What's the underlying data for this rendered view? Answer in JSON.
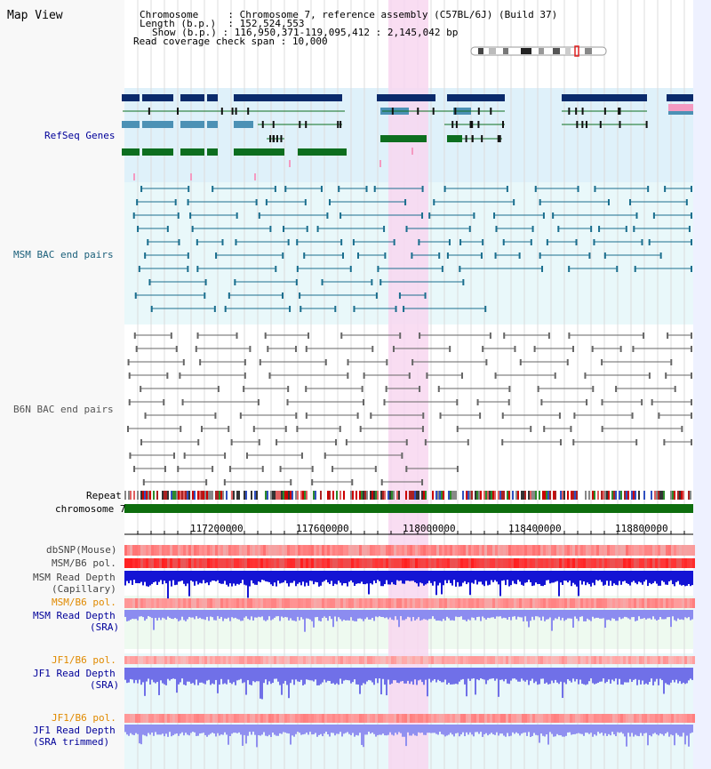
{
  "title": "Map View",
  "info": {
    "chromosome_label": "Chromosome",
    "chromosome_value": "Chromosome 7, reference assembly (C57BL/6J) (Build 37)",
    "length_label": "Length (b.p.)",
    "length_value": "152,524,553",
    "show_label": "Show (b.p.)",
    "show_value": "116,950,371-119,095,412 : 2,145,042 bp",
    "coverage_label": "Read coverage check span",
    "coverage_value": "10,000"
  },
  "tracks": {
    "refseq": "RefSeq Genes",
    "msm_bac": "MSM BAC end pairs",
    "b6n_bac": "B6N BAC end pairs",
    "repeat": "Repeat",
    "chromosome": "chromosome 7",
    "dbsnp": "dbSNP(Mouse)",
    "msm_b6_pol_1": "MSM/B6 pol.",
    "msm_depth_cap_1": "MSM Read Depth",
    "msm_depth_cap_2": "(Capillary)",
    "msm_b6_pol_2": "MSM/B6 pol.",
    "msm_depth_sra_1": "MSM Read Depth",
    "msm_depth_sra_2": "(SRA)",
    "jf1_b6_pol_1": "JF1/B6 pol.",
    "jf1_depth_sra_1": "JF1 Read Depth",
    "jf1_depth_sra_2": "(SRA)",
    "jf1_b6_pol_2": "JF1/B6 pol.",
    "jf1_depth_trim_1": "JF1 Read Depth",
    "jf1_depth_trim_2": "(SRA trimmed)"
  },
  "axis": {
    "ticks": [
      "117200000",
      "117600000",
      "118000000",
      "118400000",
      "118800000"
    ]
  },
  "colors": {
    "refseq_blue": "#0a2a6b",
    "refseq_teal": "#4c91b5",
    "refseq_green": "#0d6e1f",
    "msm_bac": "#1a6e8e",
    "b6n_bac": "#666666",
    "highlight": "#f8d7f0",
    "chromosome_bar": "#0e6e0e",
    "label_navy": "#000099",
    "label_orange": "#e08a00",
    "label_teal": "#1a5f7a"
  }
}
